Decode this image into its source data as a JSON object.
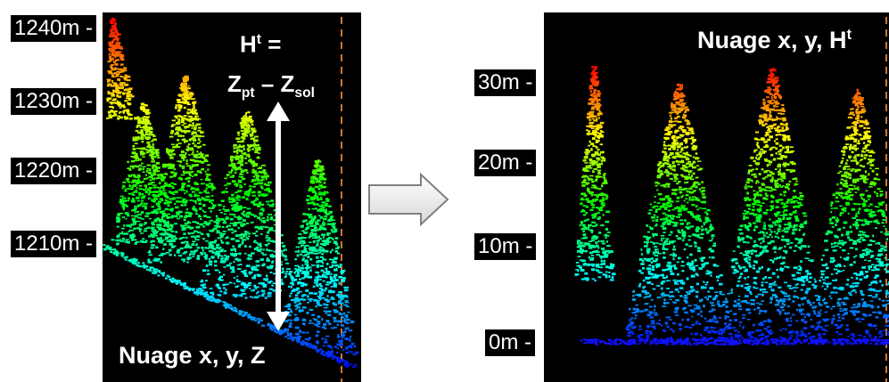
{
  "left_panel": {
    "label": "Nuage x, y, Z",
    "formula": {
      "line1_base": "H",
      "line1_sup": "t",
      "line1_eq": " =",
      "z1": "Z",
      "z1_sub": "pt",
      "minus": " – ",
      "z2": "Z",
      "z2_sub": "sol"
    },
    "ticks": [
      "1240m -",
      "1230m -",
      "1220m -",
      "1210m -"
    ]
  },
  "right_panel": {
    "label_base": "Nuage x, y, H",
    "label_sup": "t",
    "ticks": [
      "30m -",
      "20m -",
      "10m -",
      "0m -"
    ]
  },
  "colors": {
    "background": "#000000",
    "arrow_fill": "#e6e6e6",
    "arrow_stroke": "#808080",
    "dashed_line": "#c87832"
  }
}
